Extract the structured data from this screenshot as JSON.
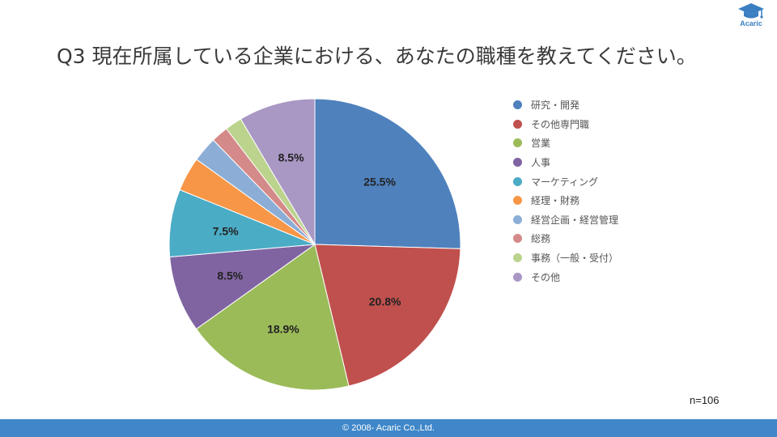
{
  "logo": {
    "text": "Acaric",
    "icon": "graduation-cap-icon",
    "color": "#3a7fc1"
  },
  "title": "Q3 現在所属している企業における、あなたの職種を教えてください。",
  "sample_size": "n=106",
  "footer": {
    "text": "© 2008- Acaric Co.,Ltd.",
    "color": "#3f87c9"
  },
  "chart_data": {
    "type": "pie",
    "title": "Q3 現在所属している企業における、あなたの職種を教えてください。",
    "legend_position": "right",
    "slices": [
      {
        "label": "研究・開発",
        "value": 25.5,
        "display": "25.5%",
        "color": "#4f81bd"
      },
      {
        "label": "その他専門職",
        "value": 20.8,
        "display": "20.8%",
        "color": "#c0504d"
      },
      {
        "label": "営業",
        "value": 18.9,
        "display": "18.9%",
        "color": "#9bbb59"
      },
      {
        "label": "人事",
        "value": 8.5,
        "display": "8.5%",
        "color": "#8064a2"
      },
      {
        "label": "マーケティング",
        "value": 7.5,
        "display": "7.5%",
        "color": "#4bacc6"
      },
      {
        "label": "経理・財務",
        "value": 3.8,
        "display": "",
        "color": "#f79646"
      },
      {
        "label": "経営企画・経営管理",
        "value": 2.8,
        "display": "",
        "color": "#8caed6"
      },
      {
        "label": "総務",
        "value": 1.9,
        "display": "",
        "color": "#d48a88"
      },
      {
        "label": "事務（一般・受付）",
        "value": 1.9,
        "display": "",
        "color": "#bcd38e"
      },
      {
        "label": "その他",
        "value": 8.5,
        "display": "8.5%",
        "color": "#a997c4"
      }
    ]
  }
}
